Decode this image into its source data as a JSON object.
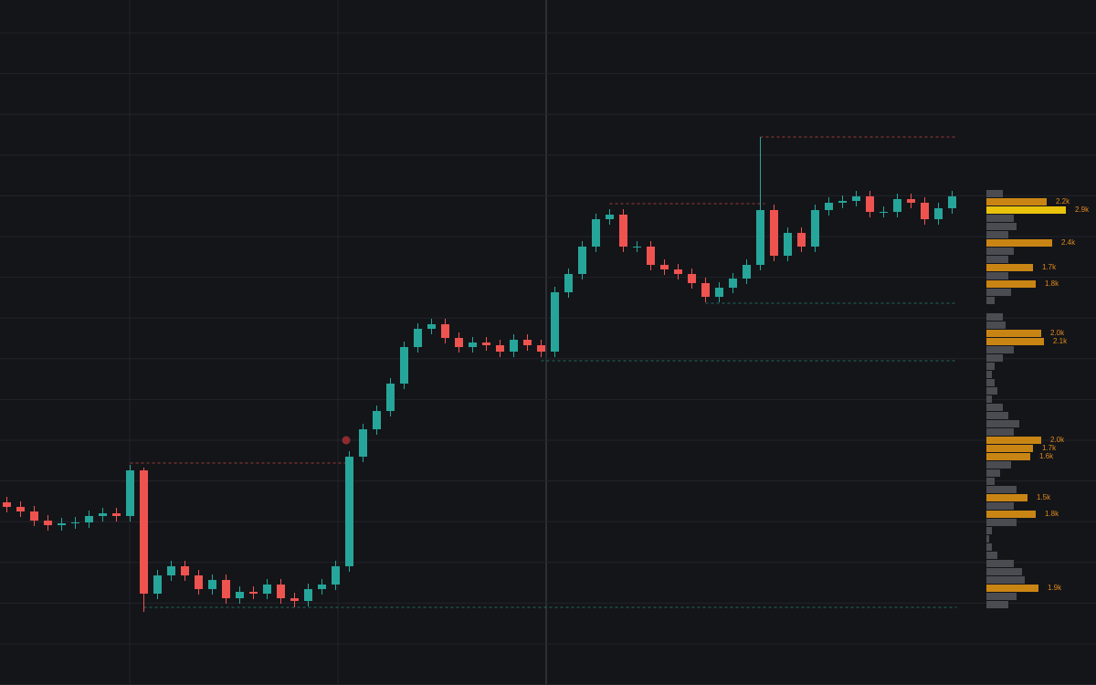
{
  "chart_data": {
    "type": "candlestick",
    "ylim": [
      0,
      750
    ],
    "up_color": "#26a69a",
    "down_color": "#ef5350",
    "open": [
      200,
      195,
      190,
      180,
      175,
      177,
      178,
      185,
      188,
      185,
      235,
      100,
      120,
      130,
      120,
      105,
      115,
      95,
      102,
      100,
      110,
      95,
      92,
      105,
      110,
      130,
      250,
      280,
      300,
      330,
      370,
      390,
      395,
      380,
      370,
      375,
      372,
      365,
      378,
      372,
      365,
      430,
      450,
      480,
      510,
      515,
      480,
      480,
      460,
      455,
      450,
      440,
      425,
      435,
      445,
      460,
      520,
      470,
      495,
      480,
      520,
      528,
      530,
      535,
      518,
      518,
      532,
      528,
      510,
      522
    ],
    "high": [
      206,
      201,
      196,
      186,
      183,
      184,
      191,
      194,
      194,
      241,
      238,
      126,
      136,
      136,
      126,
      121,
      121,
      108,
      108,
      116,
      116,
      101,
      111,
      116,
      136,
      256,
      286,
      306,
      336,
      376,
      396,
      401,
      401,
      386,
      381,
      381,
      378,
      384,
      384,
      378,
      436,
      456,
      486,
      516,
      521,
      521,
      486,
      486,
      466,
      461,
      456,
      446,
      441,
      451,
      466,
      600,
      526,
      501,
      501,
      526,
      534,
      536,
      541,
      541,
      524,
      538,
      538,
      534,
      528,
      541
    ],
    "low": [
      189,
      184,
      174,
      169,
      169,
      171,
      172,
      179,
      179,
      179,
      80,
      94,
      114,
      114,
      99,
      99,
      89,
      89,
      94,
      94,
      89,
      85,
      86,
      99,
      104,
      124,
      244,
      274,
      294,
      324,
      364,
      384,
      374,
      364,
      364,
      366,
      359,
      359,
      366,
      359,
      359,
      424,
      444,
      474,
      504,
      474,
      474,
      454,
      449,
      444,
      434,
      419,
      419,
      429,
      439,
      454,
      464,
      464,
      474,
      474,
      514,
      522,
      524,
      512,
      512,
      512,
      522,
      504,
      504,
      516
    ],
    "close": [
      195,
      190,
      180,
      175,
      177,
      178,
      185,
      188,
      185,
      235,
      100,
      120,
      130,
      120,
      105,
      115,
      95,
      102,
      100,
      110,
      95,
      92,
      105,
      110,
      130,
      250,
      280,
      300,
      330,
      370,
      390,
      395,
      380,
      370,
      375,
      372,
      365,
      378,
      372,
      365,
      430,
      450,
      480,
      510,
      515,
      480,
      480,
      460,
      455,
      450,
      440,
      425,
      435,
      445,
      460,
      520,
      470,
      495,
      480,
      520,
      528,
      530,
      535,
      518,
      518,
      532,
      528,
      510,
      522,
      535
    ],
    "levels": [
      {
        "value": 243,
        "start": 9,
        "end": 25,
        "color": "#9b3a3a"
      },
      {
        "value": 85,
        "start": 10,
        "end": 69,
        "color": "#1f6b5e"
      },
      {
        "value": 355,
        "start": 39,
        "end": 69,
        "color": "#1f6b5e"
      },
      {
        "value": 527,
        "start": 44,
        "end": 55,
        "color": "#9b3a3a"
      },
      {
        "value": 600,
        "start": 55,
        "end": 69,
        "color": "#9b3a3a"
      },
      {
        "value": 418,
        "start": 51,
        "end": 69,
        "color": "#1f6b5e"
      }
    ],
    "profile": {
      "levels": [
        538,
        529,
        520,
        511,
        502,
        493,
        484,
        475,
        466,
        457,
        448,
        439,
        430,
        421,
        412,
        403,
        394,
        385,
        376,
        367,
        358,
        349,
        340,
        331,
        322,
        313,
        304,
        295,
        286,
        277,
        268,
        259,
        250,
        241,
        232,
        223,
        214,
        205,
        196,
        187,
        178,
        169,
        160,
        151,
        142,
        133,
        124,
        115,
        106,
        97,
        88
      ],
      "values": [
        600,
        2200,
        2900,
        1000,
        1100,
        800,
        2400,
        1000,
        800,
        1700,
        800,
        1800,
        900,
        300,
        0,
        600,
        700,
        2000,
        2100,
        1000,
        600,
        300,
        200,
        300,
        400,
        200,
        600,
        800,
        1200,
        1000,
        2000,
        1700,
        1600,
        900,
        500,
        300,
        1100,
        1500,
        1000,
        1800,
        1100,
        200,
        100,
        200,
        400,
        1000,
        1300,
        1400,
        1900,
        1100,
        800
      ],
      "value_labels": [
        null,
        "2.2k",
        "2.9k",
        null,
        null,
        null,
        "2.4k",
        null,
        null,
        "1.7k",
        null,
        "1.8k",
        null,
        null,
        null,
        null,
        null,
        "2.0k",
        "2.1k",
        null,
        null,
        null,
        null,
        null,
        null,
        null,
        null,
        null,
        null,
        null,
        "2.0k",
        "1.7k",
        "1.6k",
        null,
        null,
        null,
        null,
        "1.5k",
        null,
        "1.8k",
        null,
        null,
        null,
        null,
        null,
        null,
        null,
        null,
        "1.9k",
        null,
        null
      ],
      "color": "#4a4c52",
      "highlight_color": "#c98514",
      "max_color": "#e8c20c"
    }
  }
}
